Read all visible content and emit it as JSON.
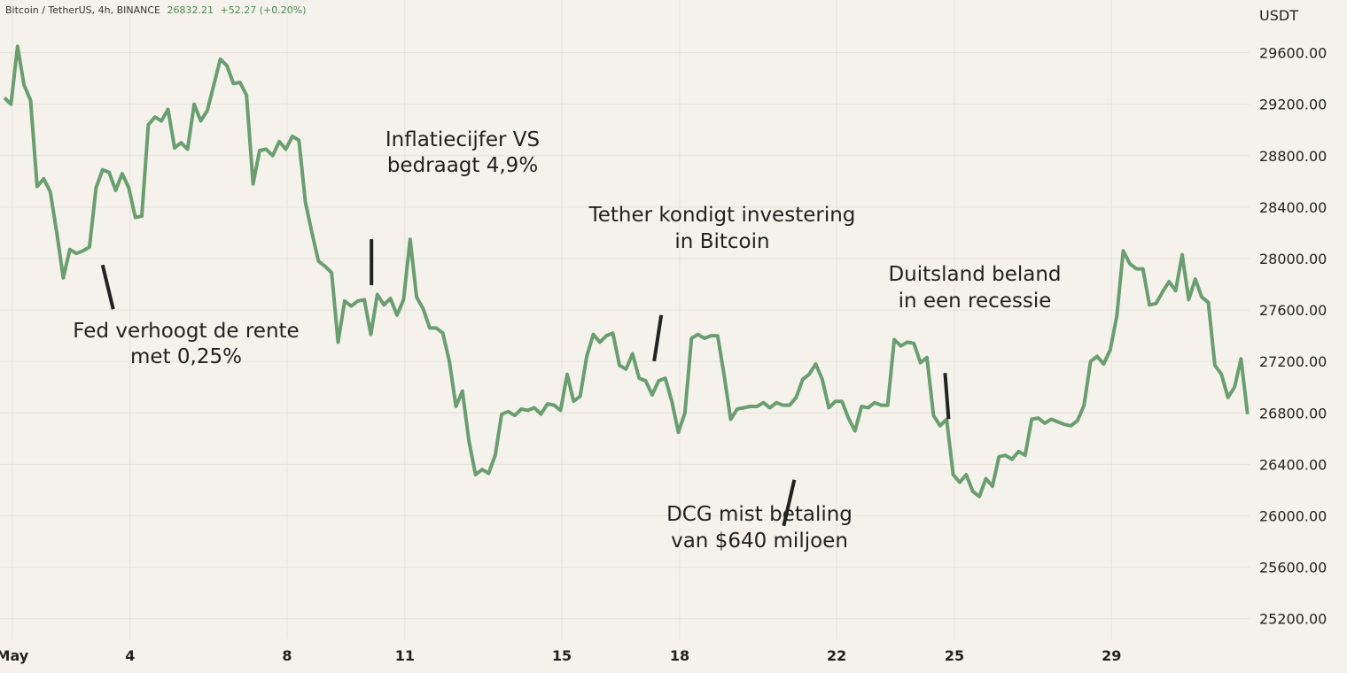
{
  "header": {
    "symbol": "Bitcoin / TetherUS, 4h, BINANCE",
    "last": "26832.21",
    "change": "+52.27 (+0.20%)"
  },
  "colors": {
    "line": "#6a9e70",
    "grid": "#e6e2da",
    "bg": "#f5f2ec",
    "positive": "#4c8a55"
  },
  "chart_data": {
    "type": "line",
    "series": [
      {
        "values": [
          29250,
          29200,
          29650,
          29350,
          29230,
          28560,
          28620,
          28520,
          28200,
          27850,
          28070,
          28040,
          28060,
          28090,
          28550,
          28690,
          28670,
          28530,
          28660,
          28550,
          28320,
          28330,
          29040,
          29100,
          29070,
          29160,
          28860,
          28900,
          28850,
          29200,
          29070,
          29150,
          29350,
          29550,
          29500,
          29360,
          29370,
          29270,
          28580,
          28840,
          28850,
          28800,
          28910,
          28850,
          28950,
          28920,
          28440,
          28200,
          27980,
          27940,
          27890,
          27350,
          27670,
          27630,
          27670,
          27680,
          27410,
          27720,
          27640,
          27690,
          27560,
          27680,
          28150,
          27700,
          27610,
          27460,
          27460,
          27420,
          27200,
          26850,
          26970,
          26580,
          26320,
          26360,
          26330,
          26470,
          26790,
          26810,
          26780,
          26830,
          26820,
          26840,
          26790,
          26870,
          26860,
          26820,
          27100,
          26890,
          26930,
          27240,
          27410,
          27350,
          27400,
          27420,
          27170,
          27140,
          27260,
          27070,
          27050,
          26940,
          27050,
          27070,
          26890,
          26650,
          26800,
          27380,
          27410,
          27380,
          27400,
          27400,
          27090,
          26750,
          26830,
          26840,
          26850,
          26850,
          26880,
          26840,
          26880,
          26860,
          26860,
          26920,
          27060,
          27100,
          27180,
          27060,
          26840,
          26890,
          26890,
          26760,
          26660,
          26850,
          26840,
          26880,
          26860,
          26860,
          27370,
          27320,
          27350,
          27340,
          27190,
          27230,
          26780,
          26700,
          26750,
          26320,
          26260,
          26320,
          26190,
          26150,
          26290,
          26230,
          26460,
          26470,
          26440,
          26500,
          26470,
          26750,
          26760,
          26720,
          26750,
          26730,
          26710,
          26700,
          26740,
          26860,
          27200,
          27240,
          27180,
          27290,
          27550,
          28060,
          27960,
          27920,
          27920,
          27640,
          27650,
          27740,
          27820,
          27750,
          28030,
          27680,
          27840,
          27700,
          27660,
          27170,
          27100,
          26920,
          27000,
          27220,
          26790
        ]
      }
    ],
    "ylim": [
      24950,
      30010
    ],
    "yticks": [
      "29600.00",
      "29200.00",
      "28800.00",
      "28400.00",
      "28000.00",
      "27600.00",
      "27200.00",
      "26800.00",
      "26400.00",
      "26000.00",
      "25600.00",
      "25200.00"
    ],
    "ytick_values": [
      29600,
      29200,
      28800,
      28400,
      28000,
      27600,
      27200,
      26800,
      26400,
      26000,
      25600,
      25200
    ],
    "ylabel": "USDT",
    "xticks": [
      "May",
      "4",
      "8",
      "11",
      "15",
      "18",
      "22",
      "25",
      "29"
    ],
    "xtick_days": [
      1,
      4,
      8,
      11,
      15,
      18,
      22,
      25,
      29
    ],
    "x_start_day": 0.8,
    "points_per_day": 6,
    "grid": true,
    "annotations": [
      {
        "lines": [
          "Fed verhoogt de rente",
          "met 0,25%"
        ],
        "day": 3.3,
        "price": 27950
      },
      {
        "lines": [
          "Inflatiecijfer VS",
          "bedraagt 4,9%"
        ],
        "day": 10.15,
        "price": 28150
      },
      {
        "lines": [
          "Tether kondigt investering",
          "in Bitcoin"
        ],
        "day": 17.35,
        "price": 27560
      },
      {
        "lines": [
          "Duitsland beland",
          "in een recessie"
        ],
        "day": 24.85,
        "price": 27110
      },
      {
        "lines": [
          "DCG mist betaling",
          "van $640 miljoen"
        ],
        "day": 20.65,
        "price": 26280
      }
    ]
  }
}
